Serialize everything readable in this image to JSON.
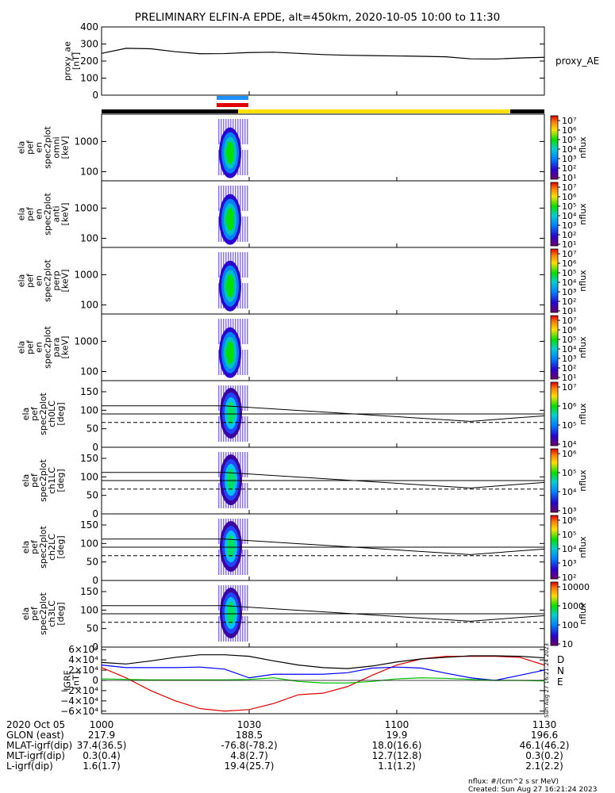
{
  "title": "PRELIMINARY ELFIN-A EPDE, alt=450km, 2020-10-05 10:00 to 11:30",
  "colors": {
    "black": "#000000",
    "red": "#e00000",
    "blue": "#0000ff",
    "green": "#00c000",
    "yellow": "#ffe000",
    "lightblue": "#1e90ff"
  },
  "chart_data": {
    "type": "multi-panel-timeseries",
    "x_range": [
      "10:00",
      "11:30"
    ],
    "panels": [
      {
        "id": "proxy_ae",
        "ylabel": [
          "proxy_ae",
          "[nT]"
        ],
        "right_label": "proxy_AE",
        "ylim": [
          0,
          400
        ],
        "yticks": [
          {
            "v": 0,
            "t": "0"
          },
          {
            "v": 100,
            "t": "100"
          },
          {
            "v": 200,
            "t": "200"
          },
          {
            "v": 300,
            "t": "300"
          },
          {
            "v": 400,
            "t": "400"
          }
        ],
        "series": [
          {
            "color": "#000000",
            "x": [
              0,
              5,
              10,
              15,
              20,
              25,
              30,
              35,
              40,
              45,
              50,
              55,
              60,
              65,
              70,
              75,
              80,
              85,
              90
            ],
            "y": [
              245,
              275,
              272,
              255,
              243,
              244,
              250,
              252,
              245,
              238,
              234,
              232,
              230,
              228,
              225,
              213,
              212,
              218,
              222
            ]
          }
        ]
      },
      {
        "id": "omni",
        "ylabel": [
          "ela",
          "pef",
          "en",
          "spec2plot",
          "omni",
          "[keV]"
        ],
        "ylim_log": [
          50,
          8000
        ],
        "yticks": [
          {
            "v": 100,
            "t": "100"
          },
          {
            "v": 1000,
            "t": "1000"
          }
        ],
        "colorbar": {
          "label": "nflux",
          "ticks": [
            "10⁷",
            "10⁶",
            "10⁵",
            "10⁴",
            "10³",
            "10²",
            "10¹"
          ]
        }
      },
      {
        "id": "anti",
        "ylabel": [
          "ela",
          "pef",
          "en",
          "spec2plot",
          "anti",
          "[keV]"
        ],
        "ylim_log": [
          50,
          8000
        ],
        "yticks": [
          {
            "v": 100,
            "t": "100"
          },
          {
            "v": 1000,
            "t": "1000"
          }
        ],
        "colorbar": {
          "label": "nflux",
          "ticks": [
            "10⁷",
            "10⁶",
            "10⁵",
            "10⁴",
            "10³",
            "10²",
            "10¹"
          ]
        }
      },
      {
        "id": "perp",
        "ylabel": [
          "ela",
          "pef",
          "en",
          "spec2plot",
          "perp",
          "[keV]"
        ],
        "ylim_log": [
          50,
          8000
        ],
        "yticks": [
          {
            "v": 100,
            "t": "100"
          },
          {
            "v": 1000,
            "t": "1000"
          }
        ],
        "colorbar": {
          "label": "nflux",
          "ticks": [
            "10⁷",
            "10⁶",
            "10⁵",
            "10⁴",
            "10³",
            "10²",
            "10¹"
          ]
        }
      },
      {
        "id": "para",
        "ylabel": [
          "ela",
          "pef",
          "en",
          "spec2plot",
          "para",
          "[keV]"
        ],
        "ylim_log": [
          50,
          8000
        ],
        "yticks": [
          {
            "v": 100,
            "t": "100"
          },
          {
            "v": 1000,
            "t": "1000"
          }
        ],
        "colorbar": {
          "label": "nflux",
          "ticks": [
            "10⁷",
            "10⁶",
            "10⁵",
            "10⁴",
            "10³",
            "10²",
            "10¹"
          ]
        }
      },
      {
        "id": "ch0LC",
        "ylabel": [
          "ela",
          "pef",
          "spec2plot",
          "ch0LC",
          "[deg]"
        ],
        "ylim": [
          0,
          180
        ],
        "yticks": [
          {
            "v": 0,
            "t": "0"
          },
          {
            "v": 50,
            "t": "50"
          },
          {
            "v": 100,
            "t": "100"
          },
          {
            "v": 150,
            "t": "150"
          }
        ],
        "colorbar": {
          "label": "nflux",
          "ticks": [
            "10⁷",
            "10⁶",
            "10⁵",
            "10⁴"
          ]
        }
      },
      {
        "id": "ch1LC",
        "ylabel": [
          "ela",
          "pef",
          "spec2plot",
          "ch1LC",
          "[deg]"
        ],
        "ylim": [
          0,
          180
        ],
        "yticks": [
          {
            "v": 0,
            "t": "0"
          },
          {
            "v": 50,
            "t": "50"
          },
          {
            "v": 100,
            "t": "100"
          },
          {
            "v": 150,
            "t": "150"
          }
        ],
        "colorbar": {
          "label": "nflux",
          "ticks": [
            "10⁶",
            "10⁵",
            "10⁴",
            "10³"
          ]
        }
      },
      {
        "id": "ch2LC",
        "ylabel": [
          "ela",
          "pef",
          "spec2plot",
          "ch2LC",
          "[deg]"
        ],
        "ylim": [
          0,
          180
        ],
        "yticks": [
          {
            "v": 0,
            "t": "0"
          },
          {
            "v": 50,
            "t": "50"
          },
          {
            "v": 100,
            "t": "100"
          },
          {
            "v": 150,
            "t": "150"
          }
        ],
        "colorbar": {
          "label": "nflux",
          "ticks": [
            "10⁶",
            "10⁵",
            "10⁴",
            "10³",
            "10²"
          ]
        }
      },
      {
        "id": "ch3LC",
        "ylabel": [
          "ela",
          "pef",
          "spec2plot",
          "ch3LC",
          "[deg]"
        ],
        "ylim": [
          0,
          180
        ],
        "yticks": [
          {
            "v": 0,
            "t": "0"
          },
          {
            "v": 50,
            "t": "50"
          },
          {
            "v": 100,
            "t": "100"
          },
          {
            "v": 150,
            "t": "150"
          }
        ],
        "colorbar": {
          "label": "nflux",
          "ticks": [
            "10000",
            "1000",
            "100",
            "10"
          ]
        }
      },
      {
        "id": "igrf",
        "ylabel": [
          "IGRF",
          "[nT]"
        ],
        "ylim": [
          -65000,
          65000
        ],
        "yticks": [
          {
            "v": -60000,
            "t": "−6×10⁴"
          },
          {
            "v": -40000,
            "t": "−4×10⁴"
          },
          {
            "v": -20000,
            "t": "−2×10⁴"
          },
          {
            "v": 0,
            "t": "0"
          },
          {
            "v": 20000,
            "t": "2×10⁴"
          },
          {
            "v": 40000,
            "t": "4×10⁴"
          },
          {
            "v": 60000,
            "t": "6×10⁴"
          }
        ],
        "legend": [
          "D",
          "N",
          "E"
        ],
        "series": [
          {
            "name": "D",
            "color": "#e00000",
            "x": [
              0,
              5,
              10,
              15,
              20,
              25,
              30,
              35,
              40,
              45,
              50,
              55,
              60,
              65,
              70,
              75,
              80,
              85,
              90
            ],
            "y": [
              25000,
              5000,
              -20000,
              -40000,
              -55000,
              -60000,
              -57000,
              -45000,
              -28000,
              -25000,
              -12000,
              10000,
              30000,
              42000,
              47000,
              47000,
              47000,
              45000,
              30000
            ]
          },
          {
            "name": "N",
            "color": "#0000ff",
            "x": [
              0,
              5,
              10,
              15,
              20,
              25,
              30,
              35,
              40,
              45,
              50,
              55,
              60,
              65,
              70,
              75,
              80,
              85,
              90
            ],
            "y": [
              30000,
              25000,
              25000,
              25000,
              26000,
              22000,
              5000,
              12000,
              12000,
              12000,
              15000,
              24000,
              26000,
              24000,
              14000,
              5000,
              0,
              10000,
              20000
            ]
          },
          {
            "name": "E",
            "color": "#00c000",
            "x": [
              0,
              5,
              10,
              15,
              20,
              25,
              30,
              35,
              40,
              45,
              50,
              55,
              60,
              65,
              70,
              75,
              80,
              85,
              90
            ],
            "y": [
              3000,
              2000,
              1000,
              1000,
              1000,
              1000,
              2000,
              5000,
              -2000,
              -5000,
              -5000,
              -2000,
              3000,
              5000,
              4000,
              2000,
              0,
              0,
              -1000
            ]
          },
          {
            "name": "",
            "color": "#000000",
            "x": [
              0,
              5,
              10,
              15,
              20,
              25,
              30,
              35,
              40,
              45,
              50,
              55,
              60,
              65,
              70,
              75,
              80,
              85,
              90
            ],
            "y": [
              35000,
              32000,
              38000,
              45000,
              50000,
              50000,
              47000,
              38000,
              30000,
              25000,
              23000,
              28000,
              36000,
              42000,
              45000,
              48000,
              48000,
              47000,
              44000
            ]
          }
        ]
      }
    ],
    "xticks": [
      {
        "v": 0,
        "t": "1000"
      },
      {
        "v": 30,
        "t": "1030"
      },
      {
        "v": 60,
        "t": "1100"
      },
      {
        "v": 90,
        "t": "1130"
      }
    ],
    "annotations": [
      {
        "row": "2020 Oct 05",
        "values": []
      },
      {
        "row": "GLON (east)",
        "values": [
          "217.9",
          "188.5",
          "19.9",
          "196.6"
        ]
      },
      {
        "row": "MLAT-igrf(dip)",
        "values": [
          "37.4(36.5)",
          "-76.8(-78.2)",
          "18.0(16.6)",
          "46.1(46.2)"
        ]
      },
      {
        "row": "MLT-igrf(dip)",
        "values": [
          "0.3(0.4)",
          "4.8(2.7)",
          "12.7(12.8)",
          "0.3(0.2)"
        ]
      },
      {
        "row": "L-igrf(dip)",
        "values": [
          "1.6(1.7)",
          "19.4(25.7)",
          "1.1(1.2)",
          "2.1(2.2)"
        ]
      }
    ],
    "footer": [
      "nflux: #/(cm^2 s sr MeV)",
      "Created: Sun Aug 27 16:21:24 2023"
    ],
    "side_stamp": "Sun Aug 27 16:21:24 2023"
  }
}
